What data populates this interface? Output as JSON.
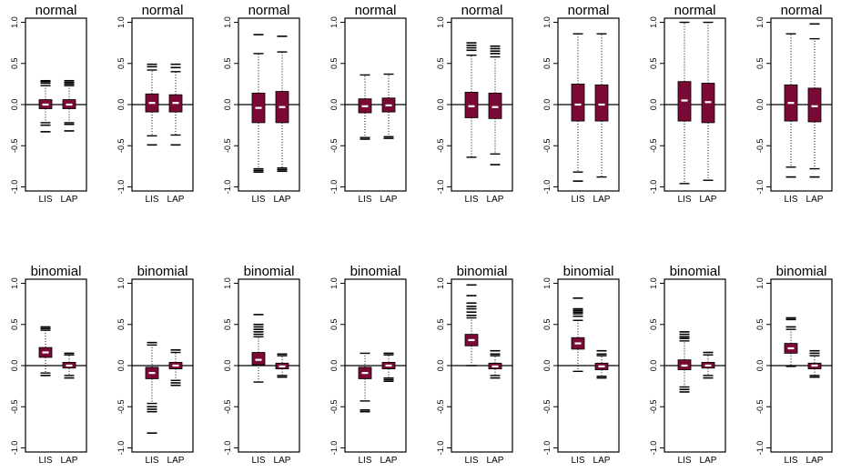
{
  "chart_data": {
    "type": "boxplot",
    "ylim": [
      -1.05,
      1.05
    ],
    "yticks": [
      -1.0,
      -0.5,
      0.0,
      0.5,
      1.0
    ],
    "ytick_labels": [
      "-1.0",
      "-0.5",
      "0.0",
      "0.5",
      "1.0"
    ],
    "categories": [
      "LIS",
      "LAP"
    ],
    "reference_line": 0,
    "colors": {
      "box": "#7a0a35",
      "median": "#ffffff",
      "frame": "#000000"
    },
    "panels": [
      {
        "title": "normal",
        "row": 0,
        "col": 0,
        "boxes": [
          {
            "label": "LIS",
            "median": 0.0,
            "q1": -0.05,
            "q3": 0.06,
            "whisker_low": -0.22,
            "whisker_high": 0.23,
            "outliers": [
              -0.25,
              -0.33,
              0.26,
              0.28,
              0.29
            ]
          },
          {
            "label": "LAP",
            "median": 0.0,
            "q1": -0.05,
            "q3": 0.06,
            "whisker_low": -0.22,
            "whisker_high": 0.23,
            "outliers": [
              -0.24,
              -0.32,
              0.25,
              0.27,
              0.29
            ]
          }
        ]
      },
      {
        "title": "normal",
        "row": 0,
        "col": 1,
        "boxes": [
          {
            "label": "LIS",
            "median": 0.02,
            "q1": -0.09,
            "q3": 0.13,
            "whisker_low": -0.38,
            "whisker_high": 0.42,
            "outliers": [
              -0.49,
              0.46,
              0.49
            ]
          },
          {
            "label": "LAP",
            "median": 0.02,
            "q1": -0.09,
            "q3": 0.12,
            "whisker_low": -0.37,
            "whisker_high": 0.4,
            "outliers": [
              -0.49,
              0.45,
              0.49
            ]
          }
        ]
      },
      {
        "title": "normal",
        "row": 0,
        "col": 2,
        "boxes": [
          {
            "label": "LIS",
            "median": -0.04,
            "q1": -0.22,
            "q3": 0.14,
            "whisker_low": -0.78,
            "whisker_high": 0.62,
            "outliers": [
              -0.8,
              -0.82,
              0.85
            ]
          },
          {
            "label": "LAP",
            "median": -0.03,
            "q1": -0.22,
            "q3": 0.16,
            "whisker_low": -0.77,
            "whisker_high": 0.64,
            "outliers": [
              -0.79,
              -0.81,
              0.83
            ]
          }
        ]
      },
      {
        "title": "normal",
        "row": 0,
        "col": 3,
        "boxes": [
          {
            "label": "LIS",
            "median": -0.02,
            "q1": -0.1,
            "q3": 0.07,
            "whisker_low": -0.4,
            "whisker_high": 0.36,
            "outliers": [
              -0.42
            ]
          },
          {
            "label": "LAP",
            "median": -0.01,
            "q1": -0.09,
            "q3": 0.08,
            "whisker_low": -0.39,
            "whisker_high": 0.37,
            "outliers": [
              -0.41
            ]
          }
        ]
      },
      {
        "title": "normal",
        "row": 0,
        "col": 4,
        "boxes": [
          {
            "label": "LIS",
            "median": -0.02,
            "q1": -0.16,
            "q3": 0.15,
            "whisker_low": -0.64,
            "whisker_high": 0.6,
            "outliers": [
              0.66,
              0.69,
              0.72,
              0.75
            ]
          },
          {
            "label": "LAP",
            "median": -0.03,
            "q1": -0.17,
            "q3": 0.14,
            "whisker_low": -0.6,
            "whisker_high": 0.58,
            "outliers": [
              -0.73,
              0.62,
              0.65,
              0.68,
              0.71
            ]
          }
        ]
      },
      {
        "title": "normal",
        "row": 0,
        "col": 5,
        "boxes": [
          {
            "label": "LIS",
            "median": 0.0,
            "q1": -0.2,
            "q3": 0.25,
            "whisker_low": -0.82,
            "whisker_high": 0.86,
            "outliers": [
              -0.93
            ]
          },
          {
            "label": "LAP",
            "median": 0.0,
            "q1": -0.2,
            "q3": 0.24,
            "whisker_low": -0.88,
            "whisker_high": 0.86,
            "outliers": []
          }
        ]
      },
      {
        "title": "normal",
        "row": 0,
        "col": 6,
        "boxes": [
          {
            "label": "LIS",
            "median": 0.05,
            "q1": -0.2,
            "q3": 0.28,
            "whisker_low": -0.96,
            "whisker_high": 1.0,
            "outliers": []
          },
          {
            "label": "LAP",
            "median": 0.03,
            "q1": -0.22,
            "q3": 0.26,
            "whisker_low": -0.92,
            "whisker_high": 1.0,
            "outliers": []
          }
        ]
      },
      {
        "title": "normal",
        "row": 0,
        "col": 7,
        "boxes": [
          {
            "label": "LIS",
            "median": 0.02,
            "q1": -0.2,
            "q3": 0.24,
            "whisker_low": -0.76,
            "whisker_high": 0.86,
            "outliers": [
              -0.88
            ]
          },
          {
            "label": "LAP",
            "median": -0.02,
            "q1": -0.21,
            "q3": 0.2,
            "whisker_low": -0.78,
            "whisker_high": 0.8,
            "outliers": [
              -0.88,
              0.98
            ]
          }
        ]
      },
      {
        "title": "binomial",
        "row": 1,
        "col": 0,
        "boxes": [
          {
            "label": "LIS",
            "median": 0.16,
            "q1": 0.1,
            "q3": 0.22,
            "whisker_low": -0.09,
            "whisker_high": 0.43,
            "outliers": [
              -0.12,
              0.45,
              0.47
            ]
          },
          {
            "label": "LAP",
            "median": 0.0,
            "q1": -0.03,
            "q3": 0.04,
            "whisker_low": -0.12,
            "whisker_high": 0.13,
            "outliers": [
              -0.15,
              0.15
            ]
          }
        ]
      },
      {
        "title": "binomial",
        "row": 1,
        "col": 1,
        "boxes": [
          {
            "label": "LIS",
            "median": -0.09,
            "q1": -0.16,
            "q3": -0.02,
            "whisker_low": -0.46,
            "whisker_high": 0.25,
            "outliers": [
              -0.5,
              -0.53,
              -0.56,
              -0.82,
              0.28
            ]
          },
          {
            "label": "LAP",
            "median": 0.0,
            "q1": -0.04,
            "q3": 0.04,
            "whisker_low": -0.18,
            "whisker_high": 0.16,
            "outliers": [
              -0.21,
              -0.24,
              0.19
            ]
          }
        ]
      },
      {
        "title": "binomial",
        "row": 1,
        "col": 2,
        "boxes": [
          {
            "label": "LIS",
            "median": 0.07,
            "q1": 0.01,
            "q3": 0.16,
            "whisker_low": -0.2,
            "whisker_high": 0.35,
            "outliers": [
              0.38,
              0.41,
              0.44,
              0.47,
              0.5,
              0.62
            ]
          },
          {
            "label": "LAP",
            "median": -0.01,
            "q1": -0.04,
            "q3": 0.03,
            "whisker_low": -0.12,
            "whisker_high": 0.12,
            "outliers": [
              -0.14,
              0.14
            ]
          }
        ]
      },
      {
        "title": "binomial",
        "row": 1,
        "col": 3,
        "boxes": [
          {
            "label": "LIS",
            "median": -0.09,
            "q1": -0.16,
            "q3": -0.02,
            "whisker_low": -0.43,
            "whisker_high": 0.15,
            "outliers": [
              -0.54,
              -0.56
            ]
          },
          {
            "label": "LAP",
            "median": 0.0,
            "q1": -0.04,
            "q3": 0.04,
            "whisker_low": -0.15,
            "whisker_high": 0.13,
            "outliers": [
              -0.17,
              -0.19,
              0.15
            ]
          }
        ]
      },
      {
        "title": "binomial",
        "row": 1,
        "col": 4,
        "boxes": [
          {
            "label": "LIS",
            "median": 0.31,
            "q1": 0.24,
            "q3": 0.38,
            "whisker_low": 0.0,
            "whisker_high": 0.58,
            "outliers": [
              0.61,
              0.65,
              0.69,
              0.72,
              0.76,
              0.85,
              0.98
            ]
          },
          {
            "label": "LAP",
            "median": -0.01,
            "q1": -0.04,
            "q3": 0.03,
            "whisker_low": -0.12,
            "whisker_high": 0.12,
            "outliers": [
              -0.15,
              0.14,
              0.18
            ]
          }
        ]
      },
      {
        "title": "binomial",
        "row": 1,
        "col": 5,
        "boxes": [
          {
            "label": "LIS",
            "median": 0.27,
            "q1": 0.2,
            "q3": 0.34,
            "whisker_low": -0.07,
            "whisker_high": 0.55,
            "outliers": [
              0.6,
              0.63,
              0.65,
              0.67,
              0.69,
              0.82
            ]
          },
          {
            "label": "LAP",
            "median": -0.01,
            "q1": -0.05,
            "q3": 0.03,
            "whisker_low": -0.13,
            "whisker_high": 0.12,
            "outliers": [
              -0.15,
              0.14,
              0.18
            ]
          }
        ]
      },
      {
        "title": "binomial",
        "row": 1,
        "col": 6,
        "boxes": [
          {
            "label": "LIS",
            "median": 0.0,
            "q1": -0.05,
            "q3": 0.07,
            "whisker_low": -0.26,
            "whisker_high": 0.3,
            "outliers": [
              -0.29,
              -0.32,
              0.33,
              0.35,
              0.38,
              0.41
            ]
          },
          {
            "label": "LAP",
            "median": 0.0,
            "q1": -0.03,
            "q3": 0.04,
            "whisker_low": -0.12,
            "whisker_high": 0.13,
            "outliers": [
              -0.15,
              0.16
            ]
          }
        ]
      },
      {
        "title": "binomial",
        "row": 1,
        "col": 7,
        "boxes": [
          {
            "label": "LIS",
            "median": 0.21,
            "q1": 0.15,
            "q3": 0.27,
            "whisker_low": -0.01,
            "whisker_high": 0.44,
            "outliers": [
              0.47,
              0.56,
              0.58
            ]
          },
          {
            "label": "LAP",
            "median": 0.0,
            "q1": -0.04,
            "q3": 0.03,
            "whisker_low": -0.12,
            "whisker_high": 0.12,
            "outliers": [
              -0.14,
              0.15,
              0.18
            ]
          }
        ]
      }
    ]
  }
}
